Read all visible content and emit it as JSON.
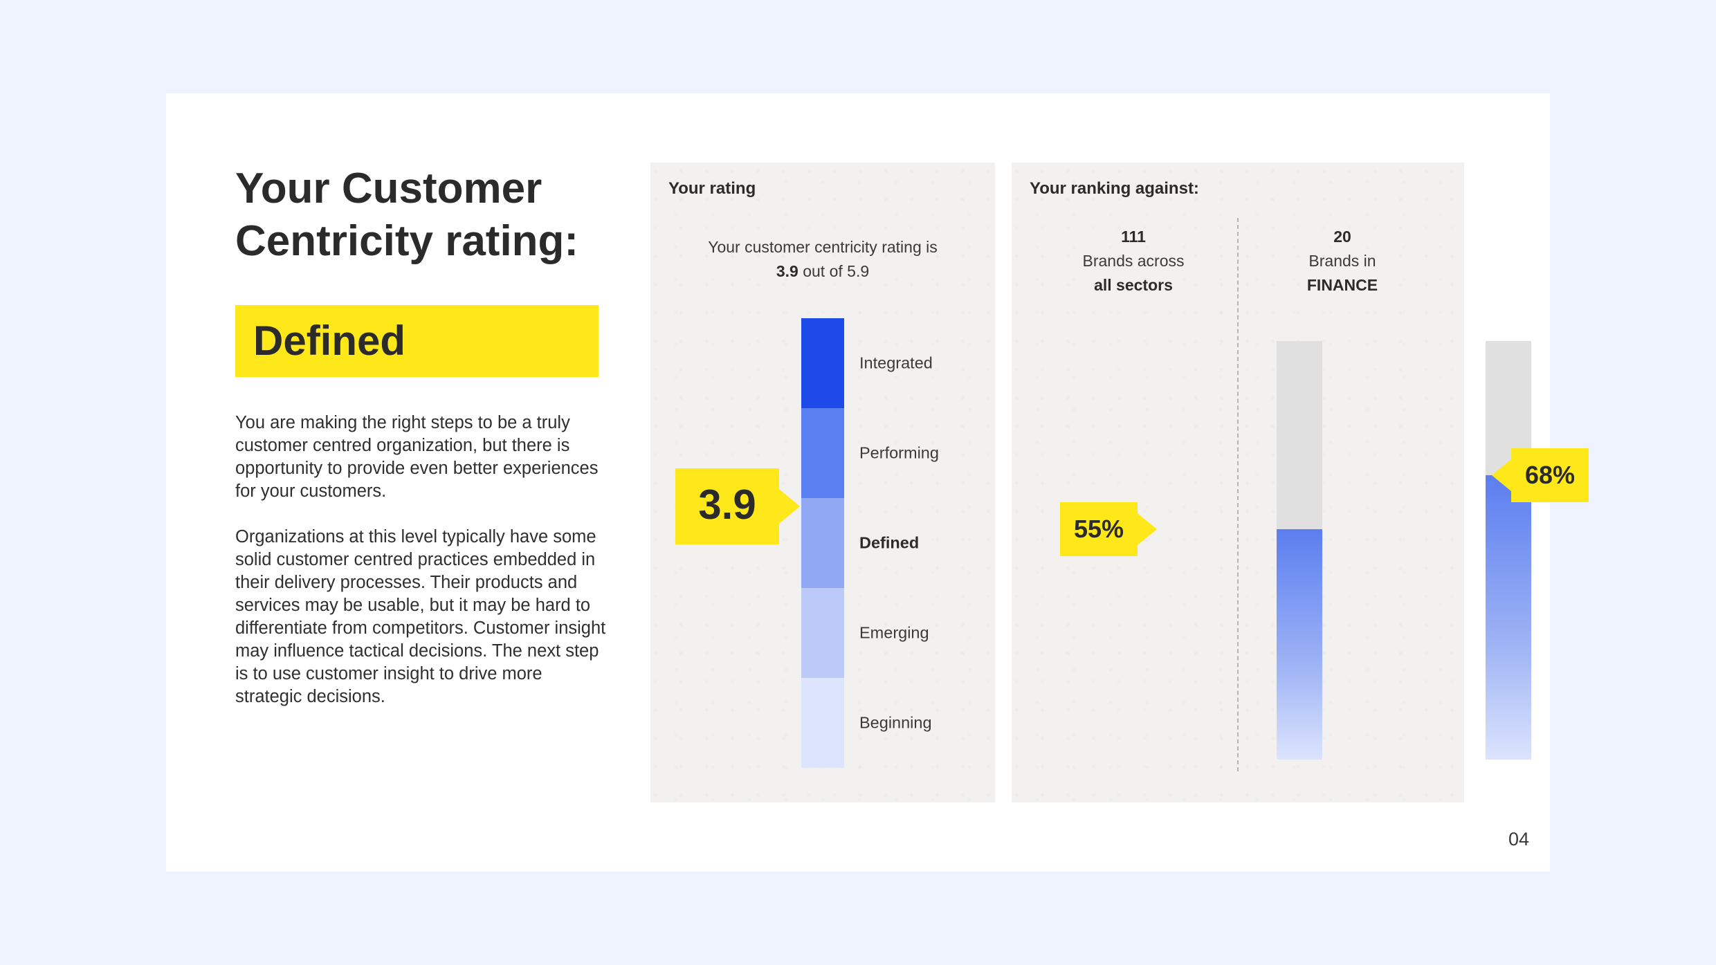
{
  "title": "Your Customer Centricity rating:",
  "level": "Defined",
  "paragraphs": [
    "You are making the right steps to be a truly customer centred organization, but there is opportunity to provide even better experiences for your customers.",
    "Organizations at this level typically have some solid customer centred practices embedded in their delivery processes. Their products and services may be usable, but it may be hard to differentiate from competitors. Customer insight may influence tactical decisions. The next step is to use customer insight to drive more strategic decisions."
  ],
  "rating_panel": {
    "title": "Your rating",
    "desc_line1": "Your customer centricity rating is",
    "desc_score": "3.9",
    "desc_suffix": " out of 5.9",
    "score_label": "3.9"
  },
  "ranking_panel": {
    "title": "Your ranking against:",
    "columns": [
      {
        "count": "111",
        "line2": "Brands across",
        "line3": "all sectors",
        "pct_label": "55%"
      },
      {
        "count": "20",
        "line2": "Brands in",
        "line3": "FINANCE",
        "pct_label": "68%"
      }
    ]
  },
  "page_number": "04",
  "colors": {
    "accent_yellow": "#ffe81a",
    "level_colors": [
      "#1f4aea",
      "#5b7ef0",
      "#91a8f5",
      "#bccaf9",
      "#dde4fd"
    ]
  },
  "chart_data": [
    {
      "type": "bar",
      "title": "Your rating",
      "categories": [
        "Integrated",
        "Performing",
        "Defined",
        "Emerging",
        "Beginning"
      ],
      "current_level": "Defined",
      "value": 3.9,
      "max": 5.9
    },
    {
      "type": "bar",
      "title": "Your ranking against:",
      "categories": [
        "all sectors",
        "FINANCE"
      ],
      "values": [
        55,
        68
      ],
      "ylim": [
        0,
        100
      ]
    }
  ]
}
